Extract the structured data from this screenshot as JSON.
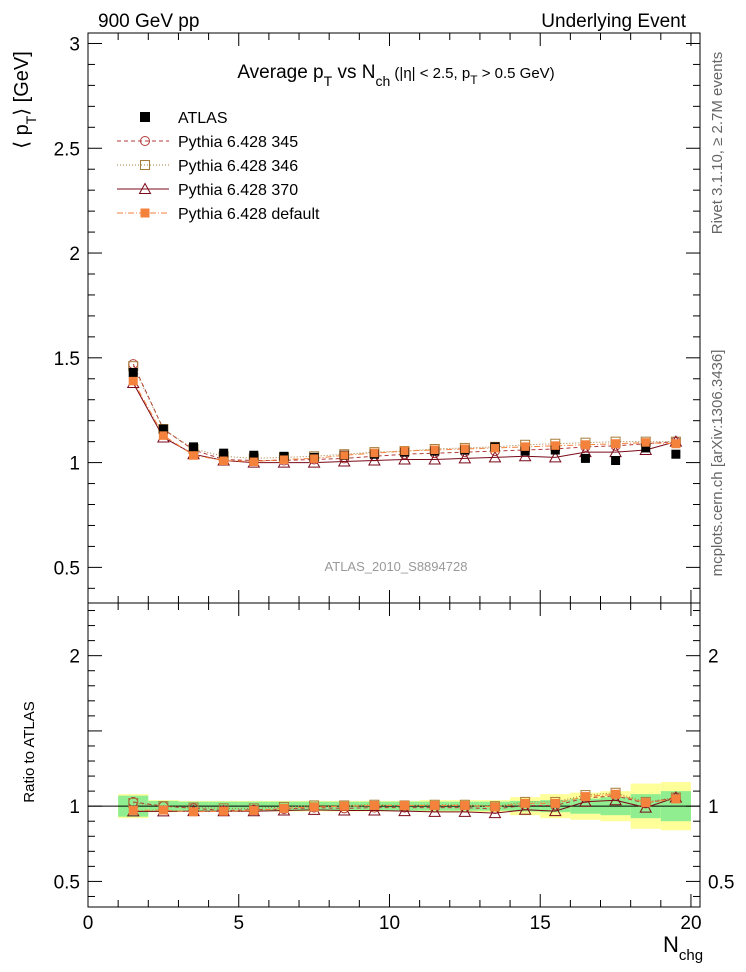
{
  "header": {
    "left": "900 GeV pp",
    "right": "Underlying Event"
  },
  "side_labels": {
    "top": "Rivet 3.1.10, ≥ 2.7M events",
    "bottom": "mcplots.cern.ch [arXiv:1306.3436]"
  },
  "chart_data": {
    "type": "scatter",
    "title": {
      "main": "Average p",
      "sub_t": "T",
      "mid": " vs N",
      "sub_ch": "ch",
      "rest": " (|η| < 2.5, p",
      "sub_t2": "T",
      "tail": " > 0.5 GeV)"
    },
    "analysis_label": "ATLAS_2010_S8894728",
    "ylabel": {
      "open": "⟨ p",
      "sub": "T",
      "close": "⟩ [GeV]"
    },
    "xlabel": {
      "main": "N",
      "sub": "chg"
    },
    "ratio_ylabel": "Ratio to ATLAS",
    "xlim": [
      0,
      20.3
    ],
    "ylim": [
      0.33,
      3.05
    ],
    "ratio_ylim": [
      0.33,
      2.35
    ],
    "x_ticks": [
      "0",
      "5",
      "10",
      "15",
      "20"
    ],
    "y_ticks": [
      "0.5",
      "1",
      "1.5",
      "2",
      "2.5",
      "3"
    ],
    "ratio_y_ticks": [
      "0.5",
      "1",
      "2"
    ],
    "x": [
      1.5,
      2.5,
      3.5,
      4.5,
      5.5,
      6.5,
      7.5,
      8.5,
      9.5,
      10.5,
      11.5,
      12.5,
      13.5,
      14.5,
      15.5,
      16.5,
      17.5,
      18.5,
      19.5
    ],
    "data": {
      "name": "ATLAS",
      "color": "#000000",
      "values": [
        1.43,
        1.16,
        1.075,
        1.045,
        1.035,
        1.03,
        1.025,
        1.035,
        1.04,
        1.05,
        1.055,
        1.06,
        1.075,
        1.055,
        1.06,
        1.02,
        1.01,
        1.07,
        1.04
      ]
    },
    "band_inner": [
      0.07,
      0.035,
      0.03,
      0.03,
      0.03,
      0.03,
      0.03,
      0.03,
      0.03,
      0.03,
      0.03,
      0.03,
      0.03,
      0.035,
      0.04,
      0.05,
      0.06,
      0.08,
      0.1
    ],
    "band_outer": [
      0.08,
      0.04,
      0.035,
      0.035,
      0.035,
      0.035,
      0.035,
      0.035,
      0.035,
      0.035,
      0.04,
      0.04,
      0.04,
      0.06,
      0.08,
      0.09,
      0.1,
      0.15,
      0.16
    ],
    "series": [
      {
        "name": "Pythia 6.428 345",
        "color": "#b33a3a",
        "marker": "open-circle",
        "dash": "4,3",
        "values": [
          1.47,
          1.16,
          1.06,
          1.015,
          1.01,
          1.01,
          1.015,
          1.02,
          1.03,
          1.04,
          1.045,
          1.05,
          1.055,
          1.06,
          1.065,
          1.075,
          1.08,
          1.09,
          1.1
        ]
      },
      {
        "name": "Pythia 6.428 346",
        "color": "#a67c3a",
        "marker": "open-square",
        "dash": "1,2",
        "values": [
          1.46,
          1.16,
          1.065,
          1.03,
          1.02,
          1.025,
          1.03,
          1.04,
          1.05,
          1.055,
          1.065,
          1.07,
          1.075,
          1.085,
          1.09,
          1.095,
          1.1,
          1.1,
          1.1
        ]
      },
      {
        "name": "Pythia 6.428 370",
        "color": "#7a0a1a",
        "marker": "open-triangle",
        "dash": "",
        "values": [
          1.38,
          1.12,
          1.04,
          1.01,
          1.0,
          1.0,
          1.0,
          1.005,
          1.01,
          1.015,
          1.015,
          1.02,
          1.025,
          1.03,
          1.025,
          1.05,
          1.05,
          1.06,
          1.1
        ]
      },
      {
        "name": "Pythia 6.428 default",
        "color": "#f5823c",
        "marker": "filled-square",
        "dash": "6,2,1,2",
        "values": [
          1.39,
          1.13,
          1.035,
          1.01,
          1.005,
          1.015,
          1.02,
          1.035,
          1.045,
          1.055,
          1.06,
          1.065,
          1.07,
          1.075,
          1.08,
          1.085,
          1.09,
          1.095,
          1.09
        ]
      }
    ]
  }
}
